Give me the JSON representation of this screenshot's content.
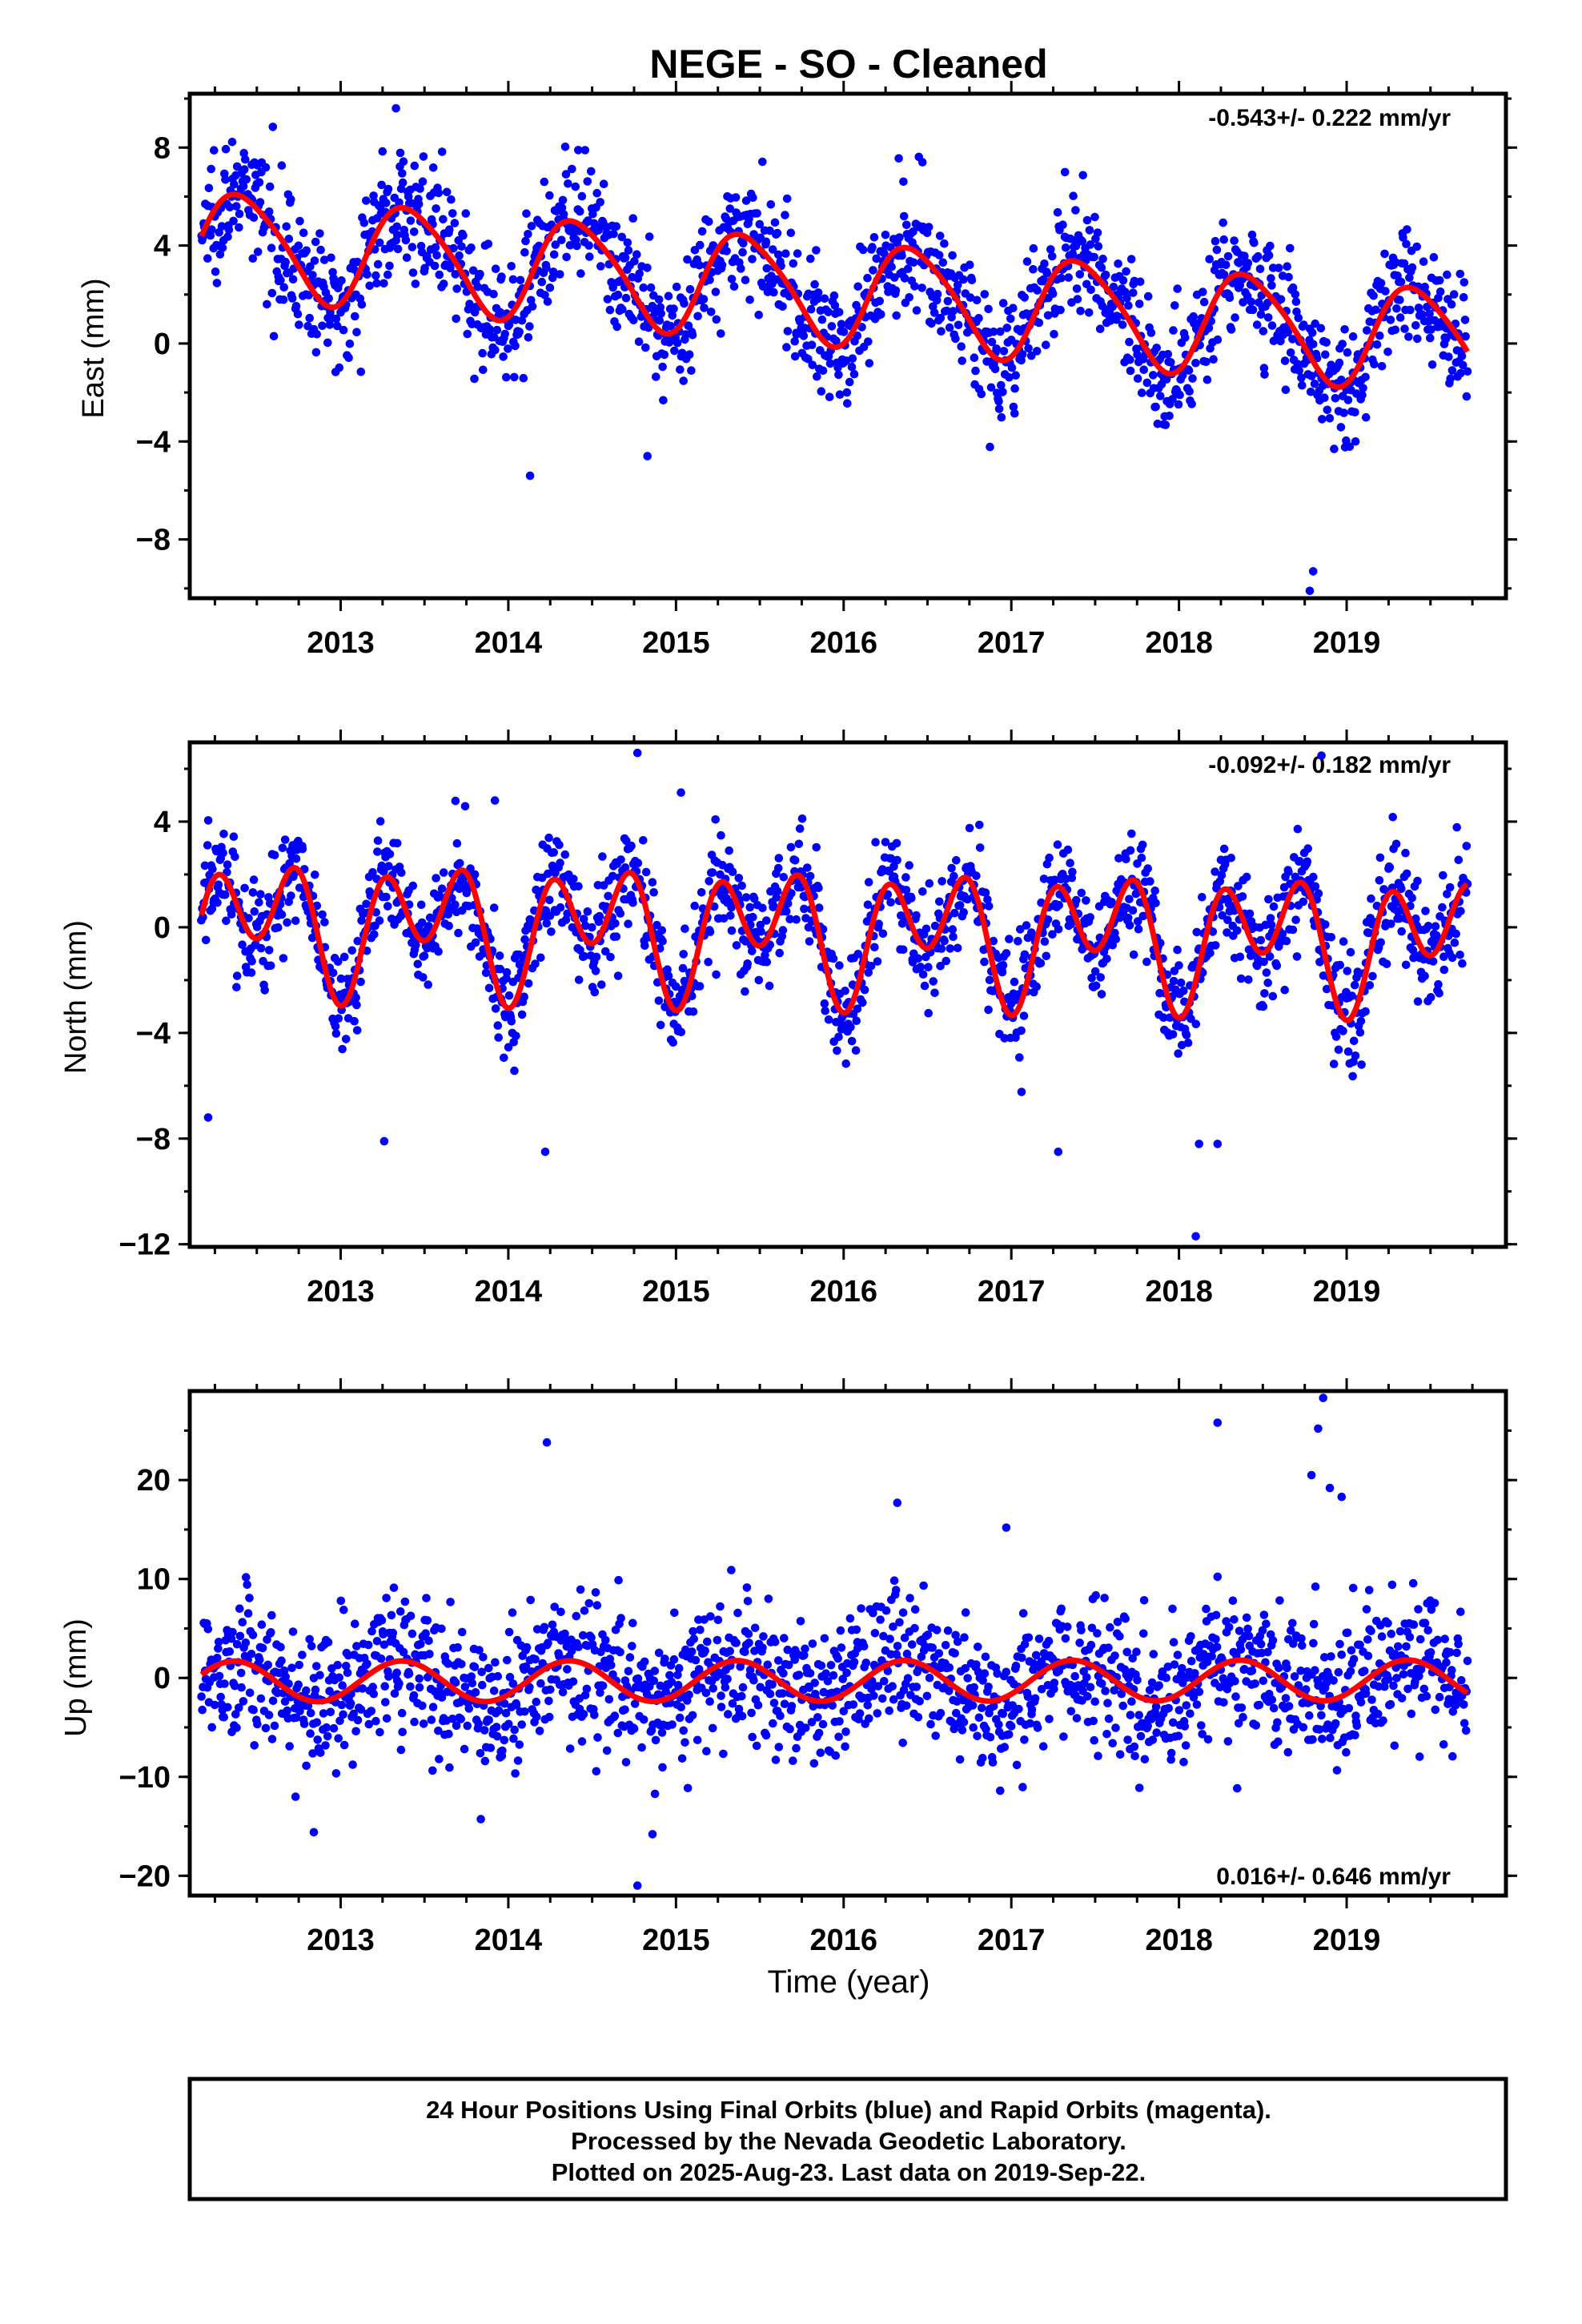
{
  "figure": {
    "title": "NEGE  - SO - Cleaned",
    "xlabel": "Time (year)",
    "footer": [
      "24 Hour Positions Using Final Orbits (blue) and Rapid Orbits (magenta).",
      "Processed by the Nevada Geodetic Laboratory.",
      "Plotted on 2025-Aug-23. Last data on 2019-Sep-22."
    ]
  },
  "colors": {
    "data": "#0000ff",
    "model": "#ff0000",
    "rapid": "#ff00ff",
    "axis": "#000000"
  },
  "chart_data": [
    {
      "type": "scatter",
      "ylabel": "East (mm)",
      "rate_label": "-0.543+/- 0.222 mm/yr",
      "xlim": [
        2012.1,
        2019.95
      ],
      "ylim": [
        -10.4,
        10.2
      ],
      "yticks": [
        8,
        4,
        0,
        -4,
        -8
      ],
      "xticks": [
        2013,
        2014,
        2015,
        2016,
        2017,
        2018,
        2019
      ],
      "data_range": [
        2012.17,
        2019.72
      ],
      "model": {
        "offset": 2.1,
        "trend": -0.543,
        "annual_cos": -1.8,
        "annual_sin": 1.05,
        "semi_cos": -0.3,
        "semi_sin": 0.0
      },
      "scatter_sd": 1.25,
      "outliers": [
        [
          2013.33,
          9.6
        ],
        [
          2012.47,
          7.3
        ],
        [
          2016.47,
          7.4
        ],
        [
          2017.32,
          7.0
        ],
        [
          2014.13,
          -5.4
        ],
        [
          2018.78,
          -10.1
        ],
        [
          2018.8,
          -9.3
        ],
        [
          2014.83,
          -4.6
        ]
      ]
    },
    {
      "type": "scatter",
      "ylabel": "North (mm)",
      "rate_label": "-0.092+/- 0.182 mm/yr",
      "xlim": [
        2012.1,
        2019.95
      ],
      "ylim": [
        -12.1,
        7.0
      ],
      "yticks": [
        4,
        0,
        -4,
        -8,
        -12
      ],
      "xticks": [
        2013,
        2014,
        2015,
        2016,
        2017,
        2018,
        2019
      ],
      "data_range": [
        2012.17,
        2019.72
      ],
      "model": {
        "offset": -0.15,
        "trend": -0.092,
        "annual_cos": -1.25,
        "annual_sin": -0.15,
        "semi_cos": -1.85,
        "semi_sin": 0.0
      },
      "scatter_sd": 1.05,
      "outliers": [
        [
          2014.77,
          6.6
        ],
        [
          2015.03,
          5.1
        ],
        [
          2013.92,
          4.8
        ],
        [
          2012.21,
          -7.2
        ],
        [
          2013.26,
          -8.1
        ],
        [
          2014.22,
          -8.5
        ],
        [
          2017.28,
          -8.5
        ],
        [
          2018.1,
          -11.7
        ],
        [
          2018.12,
          -8.2
        ],
        [
          2018.23,
          -8.2
        ],
        [
          2018.85,
          6.5
        ]
      ]
    },
    {
      "type": "scatter",
      "ylabel": "Up (mm)",
      "rate_label": "0.016+/- 0.646 mm/yr",
      "xlim": [
        2012.1,
        2019.95
      ],
      "ylim": [
        -22.0,
        29.0
      ],
      "yticks": [
        20,
        10,
        0,
        -10,
        -20
      ],
      "xticks": [
        2013,
        2014,
        2015,
        2016,
        2017,
        2018,
        2019
      ],
      "data_range": [
        2012.17,
        2019.72
      ],
      "model": {
        "offset": -0.3,
        "trend": 0.016,
        "annual_cos": -1.35,
        "annual_sin": 1.55,
        "semi_cos": 0.0,
        "semi_sin": 0.0
      },
      "scatter_sd": 3.6,
      "outliers": [
        [
          2014.23,
          23.8
        ],
        [
          2018.23,
          25.8
        ],
        [
          2018.86,
          28.3
        ],
        [
          2018.83,
          25.2
        ],
        [
          2018.79,
          20.5
        ],
        [
          2018.9,
          19.2
        ],
        [
          2018.97,
          18.3
        ],
        [
          2016.32,
          17.7
        ],
        [
          2014.77,
          -21.0
        ],
        [
          2014.86,
          -15.8
        ],
        [
          2012.84,
          -15.6
        ],
        [
          2016.97,
          15.2
        ]
      ]
    }
  ]
}
